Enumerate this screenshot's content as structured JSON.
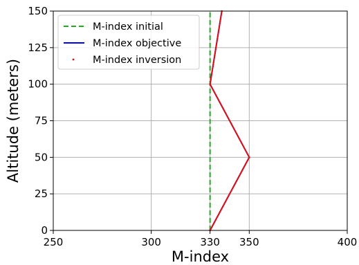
{
  "chart_data": {
    "type": "line",
    "title": "",
    "xlabel": "M-index",
    "ylabel": "Altitude (meters)",
    "xlim": [
      250,
      400
    ],
    "ylim": [
      0,
      150
    ],
    "xticks": [
      250,
      300,
      330,
      350,
      400
    ],
    "yticks": [
      0,
      25,
      50,
      75,
      100,
      125,
      150
    ],
    "grid": true,
    "legend_position": "top-left",
    "series": [
      {
        "name": "M-index initial",
        "style": "dashed",
        "color": "#22aa22",
        "x": [
          330,
          330
        ],
        "y": [
          0,
          150
        ]
      },
      {
        "name": "M-index objective",
        "style": "solid",
        "color": "#0000ee",
        "x": [
          330,
          350,
          330,
          336
        ],
        "y": [
          0,
          50,
          100,
          150
        ]
      },
      {
        "name": "M-index inversion",
        "style": "dots",
        "color": "#dd1111",
        "x": [
          330,
          350,
          330,
          336
        ],
        "y": [
          0,
          50,
          100,
          150
        ]
      }
    ]
  }
}
